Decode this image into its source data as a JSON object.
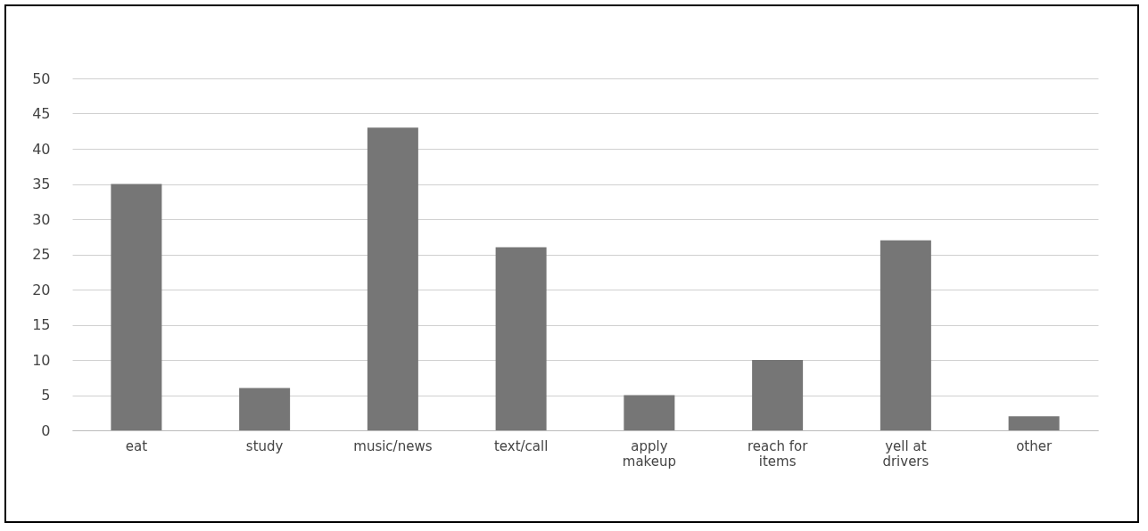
{
  "chart_data": {
    "type": "bar",
    "categories": [
      "eat",
      "study",
      "music/news",
      "text/call",
      "apply makeup",
      "reach for items",
      "yell at drivers",
      "other"
    ],
    "values": [
      35,
      6,
      43,
      26,
      5,
      10,
      27,
      2
    ],
    "color": "#767676",
    "ylim": [
      0,
      50
    ],
    "yticks": [
      0,
      5,
      10,
      15,
      20,
      25,
      30,
      35,
      40,
      45,
      50
    ],
    "grid": "y"
  }
}
